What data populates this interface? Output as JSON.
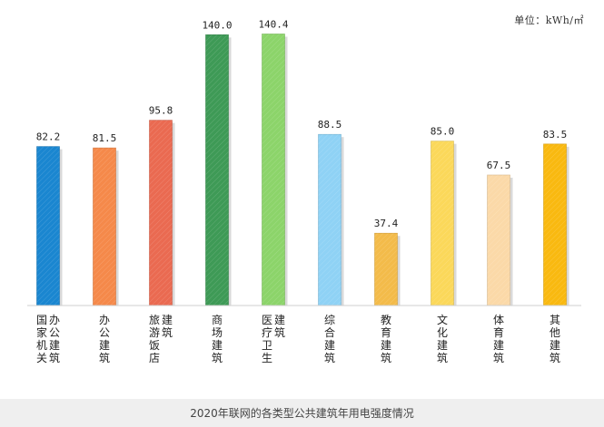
{
  "unit_label": "单位：kWh/㎡",
  "caption": "2020年联网的各类型公共建筑年用电强度情况",
  "chart_data": {
    "type": "bar",
    "title": "",
    "xlabel": "",
    "ylabel": "",
    "ylim": [
      0,
      150
    ],
    "grid": false,
    "categories": [
      "国家机关办公建筑",
      "办公建筑",
      "旅游饭店建筑",
      "商场建筑",
      "医疗卫生建筑",
      "综合建筑",
      "教育建筑",
      "文化建筑",
      "体育建筑",
      "其他建筑"
    ],
    "values": [
      82.2,
      81.5,
      95.8,
      140.0,
      140.4,
      88.5,
      37.4,
      85.0,
      67.5,
      83.5
    ],
    "value_labels": [
      "82.2",
      "81.5",
      "95.8",
      "140.0",
      "140.4",
      "88.5",
      "37.4",
      "85.0",
      "67.5",
      "83.5"
    ],
    "colors": [
      "#1a86d0",
      "#f5894a",
      "#ea6a51",
      "#3e9a56",
      "#8cd46a",
      "#8fd2f5",
      "#f3bb4a",
      "#fbd85a",
      "#fbd9a8",
      "#f9b910"
    ]
  }
}
